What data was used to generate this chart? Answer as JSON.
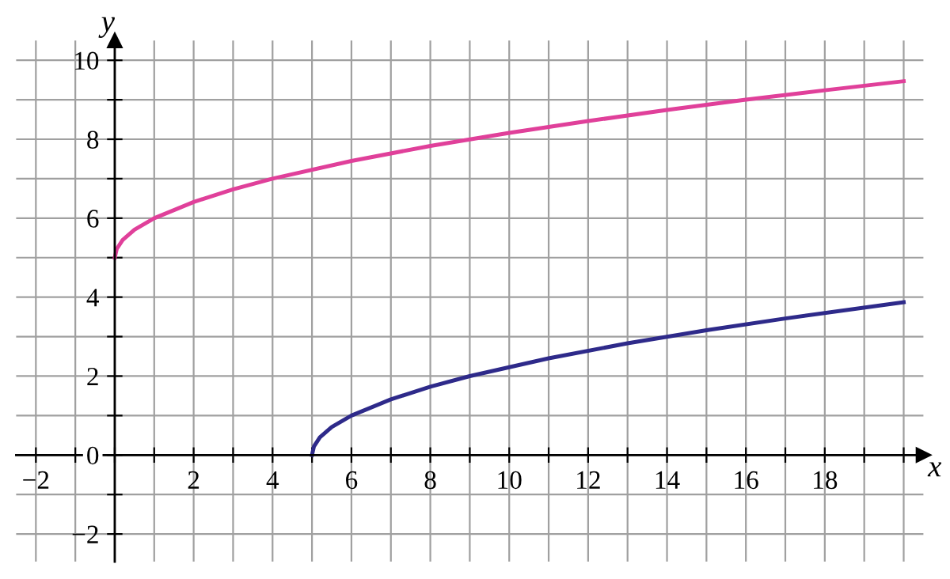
{
  "chart_data": {
    "type": "line",
    "xlabel": "x",
    "ylabel": "y",
    "xlim": [
      -2.5,
      20.5
    ],
    "ylim": [
      -2.7,
      10.5
    ],
    "xticks": [
      -2,
      {
        "value": -1,
        "label": null
      },
      {
        "value": 0,
        "label": null
      },
      {
        "value": 1,
        "label": null
      },
      2,
      {
        "value": 3,
        "label": null
      },
      4,
      {
        "value": 5,
        "label": null
      },
      6,
      {
        "value": 7,
        "label": null
      },
      8,
      {
        "value": 9,
        "label": null
      },
      10,
      {
        "value": 11,
        "label": null
      },
      12,
      {
        "value": 13,
        "label": null
      },
      14,
      {
        "value": 15,
        "label": null
      },
      16,
      {
        "value": 17,
        "label": null
      },
      18,
      {
        "value": 19,
        "label": null
      },
      {
        "value": 20,
        "label": null
      }
    ],
    "yticks": [
      -2,
      {
        "value": -1,
        "label": null
      },
      0,
      {
        "value": 1,
        "label": null
      },
      2,
      {
        "value": 3,
        "label": null
      },
      4,
      {
        "value": 5,
        "label": null
      },
      6,
      {
        "value": 7,
        "label": null
      },
      8,
      {
        "value": 9,
        "label": null
      },
      10
    ],
    "grid": true,
    "series": [
      {
        "color": "#e0409a",
        "x": [
          0,
          0.05,
          0.2,
          0.5,
          1,
          2,
          3,
          4,
          6,
          8,
          10,
          12,
          14,
          16,
          18,
          20
        ],
        "values": [
          5,
          5.22,
          5.45,
          5.71,
          6,
          6.41,
          6.73,
          7,
          7.45,
          7.83,
          8.16,
          8.46,
          8.74,
          9,
          9.24,
          9.47
        ]
      },
      {
        "color": "#2e2a8a",
        "x": [
          5,
          5.05,
          5.2,
          5.5,
          6,
          7,
          8,
          9,
          11,
          13,
          15,
          17,
          20
        ],
        "values": [
          0,
          0.22,
          0.45,
          0.71,
          1,
          1.41,
          1.73,
          2,
          2.45,
          2.83,
          3.16,
          3.46,
          3.87
        ]
      }
    ]
  }
}
